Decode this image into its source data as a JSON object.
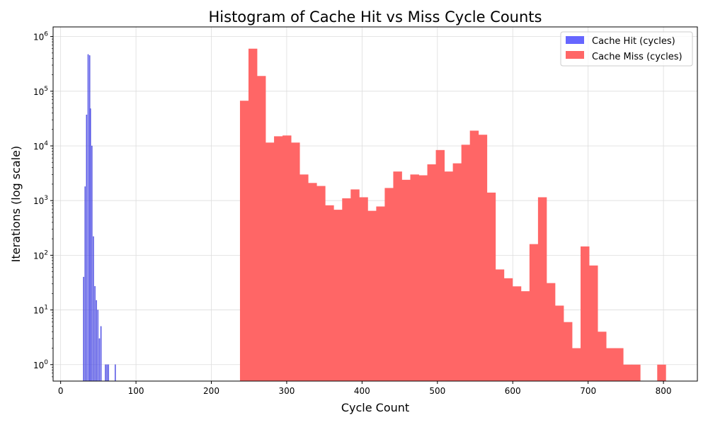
{
  "chart_data": {
    "type": "bar",
    "title": "Histogram of Cache Hit vs Miss Cycle Counts",
    "xlabel": "Cycle Count",
    "ylabel": "Iterations (log scale)",
    "xlim": [
      -10,
      845
    ],
    "ylim": [
      0.5,
      1500000
    ],
    "yscale": "log",
    "x_ticks": [
      0,
      100,
      200,
      300,
      400,
      500,
      600,
      700,
      800
    ],
    "y_ticks": [
      {
        "value": 1,
        "base": "10",
        "exp": "0"
      },
      {
        "value": 10,
        "base": "10",
        "exp": "1"
      },
      {
        "value": 100,
        "base": "10",
        "exp": "2"
      },
      {
        "value": 1000,
        "base": "10",
        "exp": "3"
      },
      {
        "value": 10000,
        "base": "10",
        "exp": "4"
      },
      {
        "value": 100000,
        "base": "10",
        "exp": "5"
      },
      {
        "value": 1000000,
        "base": "10",
        "exp": "6"
      }
    ],
    "grid": true,
    "legend_position": "top-right",
    "series": [
      {
        "name": "Cache Hit (cycles)",
        "color": "#6666ff",
        "edge_color": "#3333cc",
        "bin_width": 1,
        "bins": [
          {
            "x": 30,
            "value": 40
          },
          {
            "x": 32,
            "value": 1800
          },
          {
            "x": 34,
            "value": 37000
          },
          {
            "x": 36,
            "value": 470000
          },
          {
            "x": 38,
            "value": 450000
          },
          {
            "x": 39,
            "value": 48000
          },
          {
            "x": 41,
            "value": 10000
          },
          {
            "x": 43,
            "value": 220
          },
          {
            "x": 45,
            "value": 27
          },
          {
            "x": 47,
            "value": 15
          },
          {
            "x": 49,
            "value": 10
          },
          {
            "x": 51,
            "value": 3
          },
          {
            "x": 53,
            "value": 5
          },
          {
            "x": 59,
            "value": 1
          },
          {
            "x": 61,
            "value": 1
          },
          {
            "x": 63,
            "value": 1
          },
          {
            "x": 72,
            "value": 1
          }
        ]
      },
      {
        "name": "Cache Miss (cycles)",
        "color": "#ff6666",
        "bin_width": 11.3,
        "start": 238,
        "values": [
          67000,
          600000,
          190000,
          11500,
          15000,
          15500,
          11500,
          3000,
          2100,
          1850,
          820,
          680,
          1100,
          1600,
          1150,
          650,
          780,
          1700,
          3400,
          2400,
          3000,
          2900,
          4600,
          8400,
          3400,
          4800,
          10500,
          19000,
          16000,
          1400,
          55,
          38,
          27,
          22,
          160,
          1150,
          31,
          12,
          6,
          2,
          145,
          65,
          4,
          2,
          2,
          1,
          1,
          0,
          0,
          1
        ]
      }
    ]
  }
}
